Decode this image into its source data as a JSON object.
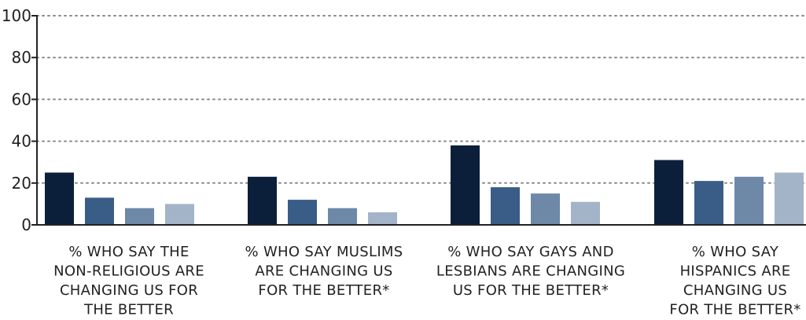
{
  "chart_data": {
    "type": "bar",
    "title": "",
    "xlabel": "",
    "ylabel": "",
    "ylim": [
      0,
      100
    ],
    "yticks": [
      0,
      20,
      40,
      60,
      80,
      100
    ],
    "grid": true,
    "categories": [
      [
        "% WHO SAY THE",
        "NON-RELIGIOUS ARE",
        "CHANGING US FOR",
        "THE BETTER"
      ],
      [
        "% WHO SAY MUSLIMS",
        "ARE CHANGING US",
        "FOR THE BETTER*"
      ],
      [
        "% WHO SAY GAYS AND",
        "LESBIANS ARE CHANGING",
        "US FOR THE BETTER*"
      ],
      [
        "% WHO SAY",
        "HISPANICS ARE",
        "CHANGING US",
        "FOR THE BETTER*"
      ]
    ],
    "series_colors": [
      "#0c1f3a",
      "#3a5d87",
      "#6e88a8",
      "#a4b4c8"
    ],
    "groups": [
      [
        25,
        13,
        8,
        10
      ],
      [
        23,
        12,
        8,
        6
      ],
      [
        38,
        18,
        15,
        11
      ],
      [
        31,
        21,
        23,
        25
      ]
    ]
  },
  "colors": {
    "axis": "#222222",
    "grid": "#8a8a8a",
    "text": "#222222"
  }
}
